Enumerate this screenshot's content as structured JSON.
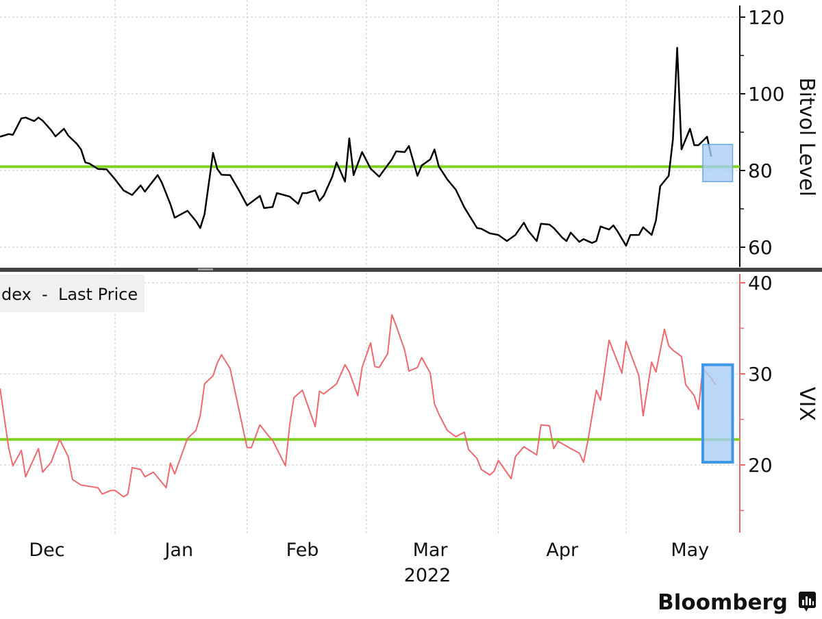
{
  "chart_data": [
    {
      "type": "line",
      "ylabel": "Bitvol Level",
      "ylim": [
        55,
        123
      ],
      "yticks": [
        60,
        80,
        100,
        120
      ],
      "yminor_ticks": [
        70,
        90,
        110
      ],
      "grid": true,
      "line_color": "#000000",
      "reference_line": {
        "value": 81,
        "color": "#7ed321"
      },
      "highlight_box": {
        "x": [
          "2022-05-19",
          "2022-05-26"
        ],
        "y": [
          77.1,
          86.8
        ],
        "color": "#a9cdf5"
      },
      "series": [
        {
          "x": [
            "2021-12-05",
            "2021-12-07",
            "2021-12-08",
            "2021-12-10",
            "2021-12-11",
            "2021-12-13",
            "2021-12-14",
            "2021-12-15",
            "2021-12-17",
            "2021-12-18",
            "2021-12-20",
            "2021-12-21",
            "2021-12-23",
            "2021-12-24",
            "2021-12-25",
            "2021-12-26",
            "2021-12-28",
            "2021-12-30",
            "2022-01-01",
            "2022-01-03",
            "2022-01-05",
            "2022-01-07",
            "2022-01-08",
            "2022-01-11",
            "2022-01-12",
            "2022-01-14",
            "2022-01-15",
            "2022-01-18",
            "2022-01-20",
            "2022-01-21",
            "2022-01-22",
            "2022-01-24",
            "2022-01-25",
            "2022-01-26",
            "2022-01-28",
            "2022-01-30",
            "2022-02-01",
            "2022-02-04",
            "2022-02-05",
            "2022-02-07",
            "2022-02-08",
            "2022-02-11",
            "2022-02-13",
            "2022-02-14",
            "2022-02-15",
            "2022-02-17",
            "2022-02-18",
            "2022-02-19",
            "2022-02-21",
            "2022-02-22",
            "2022-02-24",
            "2022-02-25",
            "2022-02-26",
            "2022-02-28",
            "2022-03-02",
            "2022-03-04",
            "2022-03-07",
            "2022-03-08",
            "2022-03-10",
            "2022-03-11",
            "2022-03-13",
            "2022-03-14",
            "2022-03-16",
            "2022-03-17",
            "2022-03-18",
            "2022-03-20",
            "2022-03-22",
            "2022-03-24",
            "2022-03-27",
            "2022-03-28",
            "2022-03-30",
            "2022-04-01",
            "2022-04-03",
            "2022-04-05",
            "2022-04-07",
            "2022-04-08",
            "2022-04-10",
            "2022-04-11",
            "2022-04-13",
            "2022-04-14",
            "2022-04-16",
            "2022-04-17",
            "2022-04-18",
            "2022-04-20",
            "2022-04-21",
            "2022-04-23",
            "2022-04-24",
            "2022-04-25",
            "2022-04-27",
            "2022-04-28",
            "2022-04-29",
            "2022-05-01",
            "2022-05-02",
            "2022-05-04",
            "2022-05-05",
            "2022-05-07",
            "2022-05-08",
            "2022-05-09",
            "2022-05-11",
            "2022-05-12",
            "2022-05-13",
            "2022-05-14",
            "2022-05-16",
            "2022-05-17",
            "2022-05-18",
            "2022-05-20",
            "2022-05-21"
          ],
          "y": [
            88.8,
            89.5,
            89.3,
            93.6,
            93.8,
            92.9,
            93.8,
            93.0,
            90.5,
            88.9,
            90.9,
            89.1,
            87.0,
            85.5,
            82.1,
            81.8,
            80.4,
            80.3,
            77.7,
            74.8,
            73.6,
            76.1,
            74.5,
            78.8,
            76.8,
            71.2,
            67.7,
            69.5,
            66.8,
            65.0,
            68.6,
            84.6,
            80.4,
            78.9,
            78.8,
            75.0,
            70.9,
            73.4,
            70.2,
            70.5,
            74.1,
            73.2,
            71.3,
            74.1,
            74.1,
            74.8,
            72.1,
            73.4,
            78.4,
            82.1,
            77.1,
            88.4,
            78.8,
            84.8,
            80.5,
            78.4,
            82.9,
            85.0,
            84.8,
            86.4,
            78.6,
            81.3,
            82.9,
            85.5,
            81.1,
            77.7,
            75.0,
            70.4,
            65.0,
            64.8,
            63.6,
            63.2,
            61.6,
            63.2,
            66.4,
            64.3,
            61.6,
            66.1,
            65.9,
            65.0,
            62.5,
            61.6,
            63.8,
            61.4,
            62.1,
            61.1,
            61.6,
            65.4,
            64.6,
            65.7,
            64.1,
            60.4,
            63.2,
            63.2,
            65.2,
            63.2,
            67.0,
            75.9,
            78.6,
            88.2,
            112.0,
            85.5,
            90.9,
            86.6,
            86.6,
            88.8,
            83.6
          ]
        }
      ]
    },
    {
      "type": "line",
      "ylabel": "VIX",
      "ylim": [
        12.3,
        41
      ],
      "yticks": [
        20,
        30,
        40
      ],
      "yminor_ticks": [
        15,
        25,
        35
      ],
      "grid": true,
      "line_color": "#f0686e",
      "axis_color": "#f0686e",
      "reference_line": {
        "value": 22.8,
        "color": "#7ed321"
      },
      "highlight_box": {
        "x": [
          "2022-05-19",
          "2022-05-26"
        ],
        "y": [
          20.3,
          31.0
        ],
        "color": "#a9cdf5",
        "border": "#3f97e8"
      },
      "legend": {
        "text": "dex  -  Last Price",
        "placement": "top-left"
      },
      "series": [
        {
          "x": [
            "2021-12-05",
            "2021-12-07",
            "2021-12-08",
            "2021-12-10",
            "2021-12-11",
            "2021-12-14",
            "2021-12-15",
            "2021-12-17",
            "2021-12-19",
            "2021-12-21",
            "2021-12-22",
            "2021-12-24",
            "2021-12-28",
            "2021-12-29",
            "2021-12-31",
            "2022-01-01",
            "2022-01-03",
            "2022-01-04",
            "2022-01-05",
            "2022-01-07",
            "2022-01-08",
            "2022-01-10",
            "2022-01-13",
            "2022-01-14",
            "2022-01-15",
            "2022-01-18",
            "2022-01-20",
            "2022-01-21",
            "2022-01-22",
            "2022-01-24",
            "2022-01-25",
            "2022-01-26",
            "2022-01-28",
            "2022-02-01",
            "2022-02-02",
            "2022-02-04",
            "2022-02-06",
            "2022-02-07",
            "2022-02-10",
            "2022-02-11",
            "2022-02-12",
            "2022-02-14",
            "2022-02-17",
            "2022-02-18",
            "2022-02-19",
            "2022-02-22",
            "2022-02-24",
            "2022-02-25",
            "2022-02-27",
            "2022-02-28",
            "2022-03-02",
            "2022-03-03",
            "2022-03-04",
            "2022-03-06",
            "2022-03-07",
            "2022-03-08",
            "2022-03-10",
            "2022-03-11",
            "2022-03-13",
            "2022-03-14",
            "2022-03-16",
            "2022-03-17",
            "2022-03-18",
            "2022-03-20",
            "2022-03-22",
            "2022-03-24",
            "2022-03-25",
            "2022-03-27",
            "2022-03-28",
            "2022-03-30",
            "2022-03-31",
            "2022-04-01",
            "2022-04-04",
            "2022-04-05",
            "2022-04-07",
            "2022-04-10",
            "2022-04-11",
            "2022-04-13",
            "2022-04-14",
            "2022-04-15",
            "2022-04-18",
            "2022-04-20",
            "2022-04-21",
            "2022-04-22",
            "2022-04-24",
            "2022-04-25",
            "2022-04-27",
            "2022-04-30",
            "2022-05-01",
            "2022-05-02",
            "2022-05-04",
            "2022-05-05",
            "2022-05-07",
            "2022-05-08",
            "2022-05-10",
            "2022-05-11",
            "2022-05-12",
            "2022-05-14",
            "2022-05-15",
            "2022-05-17",
            "2022-05-18",
            "2022-05-19",
            "2022-05-21",
            "2022-05-22"
          ],
          "y": [
            28.4,
            21.9,
            19.9,
            21.6,
            18.7,
            21.8,
            19.2,
            20.3,
            22.8,
            20.9,
            18.4,
            17.8,
            17.5,
            16.8,
            17.2,
            17.2,
            16.5,
            16.8,
            19.7,
            19.5,
            18.7,
            19.2,
            17.5,
            20.2,
            19.0,
            22.9,
            23.8,
            25.4,
            28.9,
            29.8,
            31.2,
            32.1,
            30.6,
            21.9,
            21.9,
            24.4,
            23.2,
            22.7,
            19.9,
            24.4,
            27.4,
            28.2,
            24.2,
            28.1,
            27.8,
            28.9,
            31.0,
            30.2,
            27.6,
            30.7,
            33.4,
            30.8,
            30.7,
            32.2,
            36.5,
            35.3,
            32.6,
            30.3,
            30.7,
            31.8,
            30.1,
            26.7,
            25.6,
            23.8,
            23.1,
            23.6,
            21.7,
            20.7,
            19.5,
            18.9,
            19.3,
            20.5,
            18.5,
            20.9,
            22.0,
            21.1,
            24.4,
            24.3,
            21.8,
            22.6,
            21.8,
            21.3,
            20.3,
            22.6,
            28.2,
            27.1,
            33.7,
            30.1,
            33.6,
            32.3,
            29.8,
            25.4,
            31.3,
            30.2,
            34.9,
            33.1,
            32.6,
            31.9,
            28.8,
            27.6,
            26.1,
            30.6,
            29.5,
            28.8
          ]
        }
      ]
    }
  ],
  "x_axis": {
    "months": [
      {
        "label": "Dec",
        "date": "2021-12-16"
      },
      {
        "label": "Jan",
        "date": "2022-01-16"
      },
      {
        "label": "Feb",
        "date": "2022-02-14"
      },
      {
        "label": "Mar",
        "date": "2022-03-16"
      },
      {
        "label": "Apr",
        "date": "2022-04-16"
      },
      {
        "label": "May",
        "date": "2022-05-16"
      }
    ],
    "month_gridlines": [
      "2022-01-01",
      "2022-02-01",
      "2022-03-01",
      "2022-04-01",
      "2022-05-01"
    ],
    "year_label": "2022"
  },
  "brand": {
    "logo_text": "Bloomberg"
  }
}
